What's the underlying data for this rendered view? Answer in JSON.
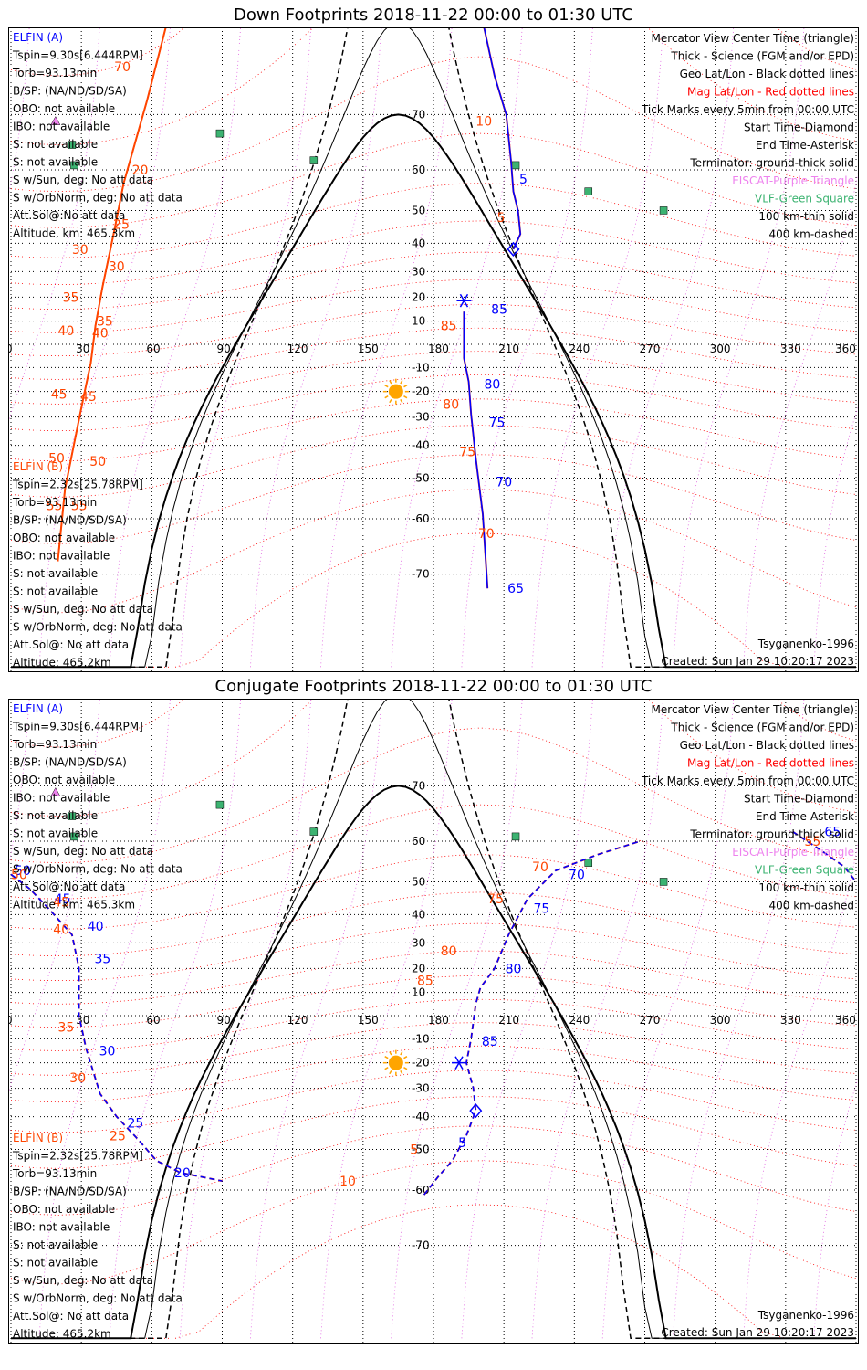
{
  "panels": [
    {
      "title": "Down Footprints 2018-11-22 00:00 to 01:30 UTC",
      "sc_a": [
        "ELFIN (A)",
        "Tspin=9.30s[6.444RPM]",
        "Torb=93.13min",
        "B/SP: (NA/ND/SD/SA)",
        "OBO: not available",
        "IBO: not available",
        "S: not available",
        "S: not available",
        "S w/Sun, deg: No att data",
        "S w/OrbNorm, deg: No att data",
        "Att.Sol@:No att data",
        "Altitude, km: 465.3km"
      ],
      "sc_b": [
        "ELFIN (B)",
        "Tspin=2.32s[25.78RPM]",
        "Torb=93.13min",
        "B/SP: (NA/ND/SD/SA)",
        "OBO: not available",
        "IBO: not available",
        "S: not available",
        "S: not available",
        "S w/Sun, deg: No att data",
        "S w/OrbNorm, deg: No att data",
        "Att.Sol@: No att data",
        "Altitude: 465.2km"
      ],
      "footer_left": "Tsyganenko-1996",
      "created": "Created: Sun Jan 29 10:20:17 2023"
    },
    {
      "title": "Conjugate Footprints 2018-11-22 00:00 to 01:30 UTC",
      "sc_a": [
        "ELFIN (A)",
        "Tspin=9.30s[6.444RPM]",
        "Torb=93.13min",
        "B/SP: (NA/ND/SD/SA)",
        "OBO: not available",
        "IBO: not available",
        "S: not available",
        "S: not available",
        "S w/Sun, deg: No att data",
        "S w/OrbNorm, deg: No att data",
        "Att.Sol@:No att data",
        "Altitude, km: 465.3km"
      ],
      "sc_b": [
        "ELFIN (B)",
        "Tspin=2.32s[25.78RPM]",
        "Torb=93.13min",
        "B/SP: (NA/ND/SD/SA)",
        "OBO: not available",
        "IBO: not available",
        "S: not available",
        "S: not available",
        "S w/Sun, deg: No att data",
        "S w/OrbNorm, deg: No att data",
        "Att.Sol@: No att data",
        "Altitude: 465.2km"
      ],
      "footer_left": "Tsyganenko-1996",
      "created": "Created: Sun Jan 29 10:20:17 2023"
    }
  ],
  "legend": [
    {
      "text": "Mercator View Center Time (triangle)",
      "color": "#000000"
    },
    {
      "text": "Thick - Science (FGM and/or EPD)",
      "color": "#000000"
    },
    {
      "text": "Geo Lat/Lon - Black dotted lines",
      "color": "#000000"
    },
    {
      "text": "Mag Lat/Lon - Red dotted lines",
      "color": "#ff0000"
    },
    {
      "text": "Tick Marks every 5min from 00:00 UTC",
      "color": "#000000"
    },
    {
      "text": "Start Time-Diamond",
      "color": "#000000"
    },
    {
      "text": "End Time-Asterisk",
      "color": "#000000"
    },
    {
      "text": "Terminator: ground-thick solid",
      "color": "#000000"
    },
    {
      "text": "EISCAT-Purple Triangle",
      "color": "#ee82ee"
    },
    {
      "text": "VLF-Green Square",
      "color": "#3cb371"
    },
    {
      "text": "100 km-thin solid",
      "color": "#000000"
    },
    {
      "text": "400 km-dashed",
      "color": "#000000"
    }
  ],
  "colors": {
    "elfin_a": "#0000ff",
    "elfin_b": "#ff4500",
    "mag_grid": "#ff0000",
    "eiscat": "#ee82ee",
    "vlf": "#3cb371",
    "sun": "#ffa500"
  },
  "chart_data": [
    {
      "type": "scatter",
      "projection": "mercator",
      "title": "Down Footprints 2018-11-22 00:00 to 01:30 UTC",
      "x_ticks": [
        "0",
        "30",
        "60",
        "90",
        "120",
        "150",
        "180",
        "210",
        "240",
        "270",
        "300",
        "330",
        "360"
      ],
      "y_ticks": [
        "70",
        "60",
        "50",
        "40",
        "30",
        "20",
        "10",
        "-10",
        "-20",
        "-30",
        "-40",
        "-50",
        "-60",
        "-70"
      ],
      "xlim": [
        0,
        360
      ],
      "subsolar_point": {
        "lon": 164,
        "lat": -20
      },
      "vlf_stations": [
        {
          "lon": 89,
          "lat": 67
        },
        {
          "lon": 26,
          "lat": 65
        },
        {
          "lon": 129,
          "lat": 62
        },
        {
          "lon": 27,
          "lat": 61
        },
        {
          "lon": 215,
          "lat": 61
        },
        {
          "lon": 246,
          "lat": 55
        },
        {
          "lon": 278,
          "lat": 50
        }
      ],
      "eiscat": [
        {
          "lon": 19,
          "lat": 69
        }
      ],
      "series": [
        {
          "name": "ELFIN (A)",
          "color": "#0000ff",
          "track": [
            [
              199,
              88
            ],
            [
              201,
              80
            ],
            [
              206,
              75
            ],
            [
              211,
              70
            ],
            [
              213,
              62
            ],
            [
              214,
              55
            ],
            [
              216,
              50
            ],
            [
              217,
              43
            ],
            [
              214,
              38
            ]
          ],
          "labels": [
            {
              "t": "10",
              "lon": 211,
              "lat": 82
            },
            {
              "t": "5",
              "lon": 215,
              "lat": 58
            }
          ]
        },
        {
          "name": "ELFIN (A) south",
          "color": "#0000ff",
          "track": [
            [
              193,
              14
            ],
            [
              193,
              -6
            ],
            [
              195,
              -16
            ],
            [
              196,
              -29
            ],
            [
              198,
              -44
            ],
            [
              201,
              -59
            ],
            [
              203,
              -72
            ]
          ],
          "labels": [
            {
              "t": "85",
              "lon": 203,
              "lat": 15
            },
            {
              "t": "80",
              "lon": 200,
              "lat": -17
            },
            {
              "t": "75",
              "lon": 202,
              "lat": -32
            },
            {
              "t": "70",
              "lon": 205,
              "lat": -51
            },
            {
              "t": "65",
              "lon": 210,
              "lat": -72
            }
          ]
        },
        {
          "name": "ELFIN (B)",
          "color": "#ff4500",
          "track": [
            [
              74,
              85
            ],
            [
              58,
              72
            ],
            [
              48,
              57
            ],
            [
              44,
              44
            ],
            [
              39,
              24
            ],
            [
              36,
              8
            ],
            [
              34,
              -8
            ],
            [
              31,
              -22
            ],
            [
              27,
              -39
            ],
            [
              23,
              -53
            ],
            [
              20,
              -68
            ]
          ],
          "labels": [
            {
              "t": "20",
              "lon": 50,
              "lat": 60
            },
            {
              "t": "25",
              "lon": 42,
              "lat": 46
            },
            {
              "t": "30",
              "lon": 40,
              "lat": 32
            },
            {
              "t": "35",
              "lon": 35,
              "lat": 10
            },
            {
              "t": "40",
              "lon": 33,
              "lat": 5
            },
            {
              "t": "45",
              "lon": 28,
              "lat": -22
            },
            {
              "t": "50",
              "lon": 32,
              "lat": -45
            },
            {
              "t": "55",
              "lon": 24,
              "lat": -57
            }
          ]
        }
      ],
      "mag_labels": [
        {
          "t": "70",
          "lon": 44,
          "lat": 76
        },
        {
          "t": "30",
          "lon": 26,
          "lat": 38
        },
        {
          "t": "35",
          "lon": 22,
          "lat": 20
        },
        {
          "t": "40",
          "lon": 20,
          "lat": 6
        },
        {
          "t": "45",
          "lon": 17,
          "lat": -21
        },
        {
          "t": "50",
          "lon": 16,
          "lat": -44
        },
        {
          "t": "55",
          "lon": 15,
          "lat": -57
        },
        {
          "t": "10",
          "lon": 198,
          "lat": 69
        },
        {
          "t": "5",
          "lon": 207,
          "lat": 48
        },
        {
          "t": "85",
          "lon": 183,
          "lat": 8
        },
        {
          "t": "80",
          "lon": 184,
          "lat": -25
        },
        {
          "t": "75",
          "lon": 191,
          "lat": -42
        },
        {
          "t": "70",
          "lon": 199,
          "lat": -63
        }
      ]
    },
    {
      "type": "scatter",
      "projection": "mercator",
      "title": "Conjugate Footprints 2018-11-22 00:00 to 01:30 UTC",
      "x_ticks": [
        "0",
        "30",
        "60",
        "90",
        "120",
        "150",
        "180",
        "210",
        "240",
        "270",
        "300",
        "330",
        "360"
      ],
      "y_ticks": [
        "70",
        "60",
        "50",
        "40",
        "30",
        "20",
        "10",
        "-10",
        "-20",
        "-30",
        "-40",
        "-50",
        "-60",
        "-70"
      ],
      "xlim": [
        0,
        360
      ],
      "subsolar_point": {
        "lon": 164,
        "lat": -20
      },
      "vlf_stations": [
        {
          "lon": 89,
          "lat": 67
        },
        {
          "lon": 26,
          "lat": 65
        },
        {
          "lon": 129,
          "lat": 62
        },
        {
          "lon": 27,
          "lat": 61
        },
        {
          "lon": 215,
          "lat": 61
        },
        {
          "lon": 246,
          "lat": 55
        },
        {
          "lon": 278,
          "lat": 50
        }
      ],
      "eiscat": [
        {
          "lon": 19,
          "lat": 69
        }
      ],
      "series": [
        {
          "name": "ELFIN (A)",
          "color": "#0000ff",
          "track": [
            [
              0,
              52
            ],
            [
              8,
              48
            ],
            [
              16,
              42
            ],
            [
              26,
              33
            ],
            [
              29,
              20
            ],
            [
              29,
              0
            ],
            [
              32,
              -14
            ],
            [
              38,
              -32
            ],
            [
              45,
              -40
            ],
            [
              54,
              -47
            ],
            [
              62,
              -53
            ],
            [
              72,
              -56
            ],
            [
              90,
              -58
            ]
          ],
          "labels": [
            {
              "t": "50",
              "lon": 0,
              "lat": 53
            },
            {
              "t": "45",
              "lon": 17,
              "lat": 45
            },
            {
              "t": "40",
              "lon": 31,
              "lat": 36
            },
            {
              "t": "35",
              "lon": 34,
              "lat": 24
            },
            {
              "t": "30",
              "lon": 36,
              "lat": -15
            },
            {
              "t": "25",
              "lon": 48,
              "lat": -42
            },
            {
              "t": "20",
              "lon": 68,
              "lat": -56
            }
          ]
        },
        {
          "name": "ELFIN (A) conj east",
          "color": "#0000ff",
          "track": [
            [
              176,
              -61
            ],
            [
              182,
              -57
            ],
            [
              188,
              -53
            ],
            [
              194,
              -46
            ],
            [
              198,
              -38
            ],
            [
              197,
              -30
            ],
            [
              194,
              -20
            ],
            [
              196,
              -10
            ],
            [
              198,
              5
            ],
            [
              200,
              12
            ],
            [
              206,
              20
            ],
            [
              212,
              33
            ],
            [
              220,
              45
            ],
            [
              232,
              53
            ],
            [
              250,
              57
            ],
            [
              268,
              60
            ]
          ],
          "labels": [
            {
              "t": "5",
              "lon": 189,
              "lat": -48
            },
            {
              "t": "85",
              "lon": 199,
              "lat": -11
            },
            {
              "t": "80",
              "lon": 209,
              "lat": 20
            },
            {
              "t": "75",
              "lon": 221,
              "lat": 42
            },
            {
              "t": "70",
              "lon": 236,
              "lat": 52
            },
            {
              "t": "65",
              "lon": 345,
              "lat": 62
            }
          ]
        },
        {
          "name": "ELFIN (B) conj",
          "color": "#0000ff",
          "track": [
            [
              333,
              62
            ],
            [
              345,
              58
            ],
            [
              355,
              54
            ],
            [
              360,
              50
            ]
          ],
          "labels": []
        }
      ],
      "mag_labels": [
        {
          "t": "50",
          "lon": 0,
          "lat": 52
        },
        {
          "t": "45",
          "lon": 18,
          "lat": 44
        },
        {
          "t": "40",
          "lon": 18,
          "lat": 35
        },
        {
          "t": "35",
          "lon": 20,
          "lat": -5
        },
        {
          "t": "30",
          "lon": 25,
          "lat": -26
        },
        {
          "t": "25",
          "lon": 42,
          "lat": -46
        },
        {
          "t": "5",
          "lon": 170,
          "lat": -50
        },
        {
          "t": "10",
          "lon": 140,
          "lat": -58
        },
        {
          "t": "85",
          "lon": 173,
          "lat": 15
        },
        {
          "t": "80",
          "lon": 183,
          "lat": 27
        },
        {
          "t": "75",
          "lon": 203,
          "lat": 45
        },
        {
          "t": "70",
          "lon": 222,
          "lat": 54
        },
        {
          "t": "55",
          "lon": 338,
          "lat": 60
        }
      ]
    }
  ]
}
